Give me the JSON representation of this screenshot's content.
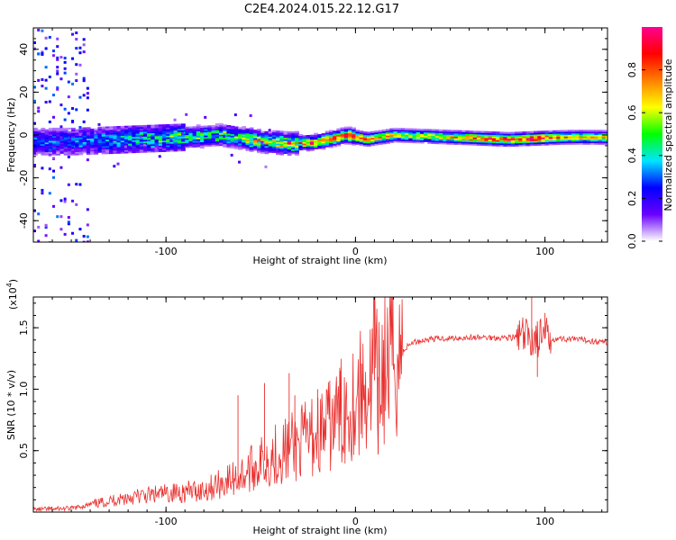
{
  "chart_data": [
    {
      "type": "heatmap",
      "title": "C2E4.2024.015.22.12.G17",
      "xlabel": "Height of straight line (km)",
      "ylabel": "Frequency (Hz)",
      "xlim": [
        -170,
        133
      ],
      "ylim": [
        -50,
        50
      ],
      "x_ticks": [
        -100,
        0,
        100
      ],
      "y_ticks": [
        -40,
        -20,
        0,
        20,
        40
      ],
      "colorbar": {
        "label": "Normalized spectral amplitude",
        "range": [
          0,
          1
        ],
        "ticks": [
          0.0,
          0.2,
          0.4,
          0.6,
          0.8
        ],
        "colors": [
          "#ffffff",
          "#6a00ff",
          "#0000ff",
          "#00e5ff",
          "#00ff00",
          "#ffff00",
          "#ff8000",
          "#ff0000",
          "#ff0090"
        ]
      },
      "ridge": [
        {
          "x": -150,
          "y": -3
        },
        {
          "x": -120,
          "y": -2
        },
        {
          "x": -90,
          "y": -1
        },
        {
          "x": -70,
          "y": 0
        },
        {
          "x": -50,
          "y": -3
        },
        {
          "x": -35,
          "y": -4
        },
        {
          "x": -20,
          "y": -3
        },
        {
          "x": -5,
          "y": 0
        },
        {
          "x": 5,
          "y": -2
        },
        {
          "x": 20,
          "y": 0
        },
        {
          "x": 50,
          "y": -1
        },
        {
          "x": 80,
          "y": -2
        },
        {
          "x": 110,
          "y": -1
        },
        {
          "x": 133,
          "y": -1
        }
      ],
      "intensity": [
        {
          "x": -150,
          "v": 0.25
        },
        {
          "x": -120,
          "v": 0.35
        },
        {
          "x": -90,
          "v": 0.4
        },
        {
          "x": -60,
          "v": 0.5
        },
        {
          "x": -30,
          "v": 0.65
        },
        {
          "x": -5,
          "v": 0.85
        },
        {
          "x": 30,
          "v": 0.55
        },
        {
          "x": 70,
          "v": 0.8
        },
        {
          "x": 95,
          "v": 0.85
        },
        {
          "x": 120,
          "v": 0.65
        }
      ]
    },
    {
      "type": "line",
      "xlabel": "Height of straight line (km)",
      "ylabel": "SNR (10 * v/v)",
      "yscale_label": "(x10",
      "yscale_exp": "4",
      "xlim": [
        -170,
        133
      ],
      "ylim": [
        0,
        1.75
      ],
      "x_ticks": [
        -100,
        0,
        100
      ],
      "y_ticks": [
        0.5,
        1.0,
        1.5
      ],
      "y_tick_labels": [
        "0.5",
        "1.0",
        "1.5"
      ],
      "color": "#e8312f",
      "series": [
        {
          "points": [
            {
              "x": -170,
              "y": 0.02
            },
            {
              "x": -150,
              "y": 0.03
            },
            {
              "x": -140,
              "y": 0.06
            },
            {
              "x": -120,
              "y": 0.12
            },
            {
              "x": -100,
              "y": 0.15
            },
            {
              "x": -80,
              "y": 0.18
            },
            {
              "x": -60,
              "y": 0.3
            },
            {
              "x": -45,
              "y": 0.45
            },
            {
              "x": -30,
              "y": 0.55
            },
            {
              "x": -15,
              "y": 0.68
            },
            {
              "x": -5,
              "y": 0.85
            },
            {
              "x": 5,
              "y": 1.0
            },
            {
              "x": 12,
              "y": 1.1
            },
            {
              "x": 20,
              "y": 1.25
            },
            {
              "x": 30,
              "y": 1.38
            },
            {
              "x": 40,
              "y": 1.41
            },
            {
              "x": 60,
              "y": 1.42
            },
            {
              "x": 80,
              "y": 1.42
            },
            {
              "x": 90,
              "y": 1.42
            },
            {
              "x": 100,
              "y": 1.41
            },
            {
              "x": 110,
              "y": 1.41
            },
            {
              "x": 120,
              "y": 1.4
            },
            {
              "x": 133,
              "y": 1.38
            }
          ],
          "spikes": [
            {
              "x": -62,
              "y": 0.95
            },
            {
              "x": -48,
              "y": 1.05
            },
            {
              "x": -35,
              "y": 1.13
            },
            {
              "x": -32,
              "y": 0.95
            },
            {
              "x": -20,
              "y": 1.0
            },
            {
              "x": -8,
              "y": 1.15
            },
            {
              "x": 10,
              "y": 1.75
            },
            {
              "x": 12,
              "y": 0.47
            },
            {
              "x": 93,
              "y": 1.75
            },
            {
              "x": 96,
              "y": 1.1
            },
            {
              "x": 100,
              "y": 1.62
            }
          ]
        }
      ]
    }
  ]
}
